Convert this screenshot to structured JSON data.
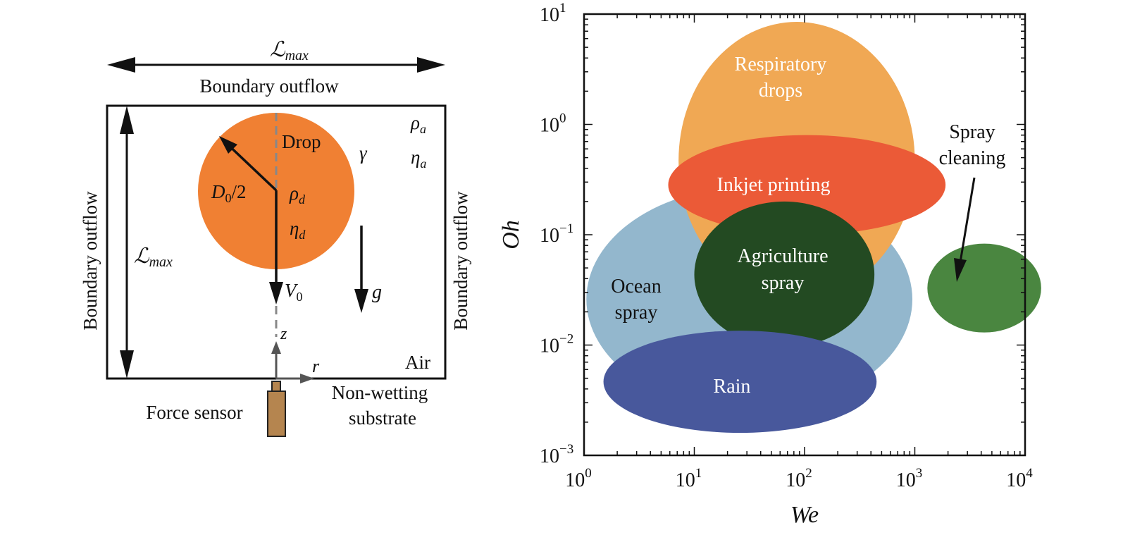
{
  "schematic": {
    "lmax_top": "ℒ",
    "lmax_top_sub": "max",
    "boundary_top": "Boundary outflow",
    "boundary_left": "Boundary outflow",
    "boundary_right": "Boundary outflow",
    "lmax_side": "ℒ",
    "lmax_side_sub": "max",
    "drop": "Drop",
    "gamma": "γ",
    "rho_a": "ρ",
    "rho_a_sub": "a",
    "eta_a": "η",
    "eta_a_sub": "a",
    "d0": "D",
    "d0_sub": "0",
    "d0_rest": "/2",
    "rho_d": "ρ",
    "rho_d_sub": "d",
    "eta_d": "η",
    "eta_d_sub": "d",
    "v0": "V",
    "v0_sub": "0",
    "g": "g",
    "z": "z",
    "r": "r",
    "air": "Air",
    "force_sensor": "Force sensor",
    "substrate_line1": "Non-wetting",
    "substrate_line2": "substrate",
    "colors": {
      "drop": "#f08033",
      "sensor": "#b5854f"
    }
  },
  "chart_data": {
    "type": "regime map",
    "xlabel": "We",
    "ylabel": "Oh",
    "x_scale": "log",
    "y_scale": "log",
    "xlim": [
      1,
      10000
    ],
    "ylim": [
      0.001,
      10
    ],
    "x_ticks": [
      {
        "base": "10",
        "exp": "0"
      },
      {
        "base": "10",
        "exp": "1"
      },
      {
        "base": "10",
        "exp": "2"
      },
      {
        "base": "10",
        "exp": "3"
      },
      {
        "base": "10",
        "exp": "4"
      }
    ],
    "y_ticks": [
      {
        "base": "10",
        "exp": "−3"
      },
      {
        "base": "10",
        "exp": "−2"
      },
      {
        "base": "10",
        "exp": "−1"
      },
      {
        "base": "10",
        "exp": "0"
      },
      {
        "base": "10",
        "exp": "1"
      }
    ],
    "regions": [
      {
        "name": "Ocean spray",
        "lines": [
          "Ocean",
          "spray"
        ],
        "color": "#93b7cd",
        "we_range": [
          1.05,
          950
        ],
        "oh_range": [
          0.0025,
          0.27
        ]
      },
      {
        "name": "Respiratory drops",
        "lines": [
          "Respiratory",
          "drops"
        ],
        "color": "#f0a854",
        "we_range": [
          7.2,
          1000
        ],
        "oh_range": [
          0.026,
          8.5
        ]
      },
      {
        "name": "Inkjet printing",
        "lines": [
          "Inkjet printing"
        ],
        "color": "#eb5a37",
        "we_range": [
          5.8,
          1900
        ],
        "oh_range": [
          0.1,
          0.8
        ]
      },
      {
        "name": "Agriculture spray",
        "lines": [
          "Agriculture",
          "spray"
        ],
        "color": "#234a22",
        "we_range": [
          10,
          430
        ],
        "oh_range": [
          0.0095,
          0.2
        ]
      },
      {
        "name": "Rain",
        "lines": [
          "Rain"
        ],
        "color": "#48589c",
        "we_range": [
          1.5,
          450
        ],
        "oh_range": [
          0.0016,
          0.0135
        ]
      },
      {
        "name": "Spray cleaning",
        "lines": [
          "Spray",
          "cleaning"
        ],
        "color": "#4a8640",
        "we_range": [
          1300,
          14000
        ],
        "oh_range": [
          0.013,
          0.083
        ]
      }
    ],
    "annotation": {
      "text_lines": [
        "Spray",
        "cleaning"
      ],
      "points_to": "Spray cleaning"
    }
  }
}
